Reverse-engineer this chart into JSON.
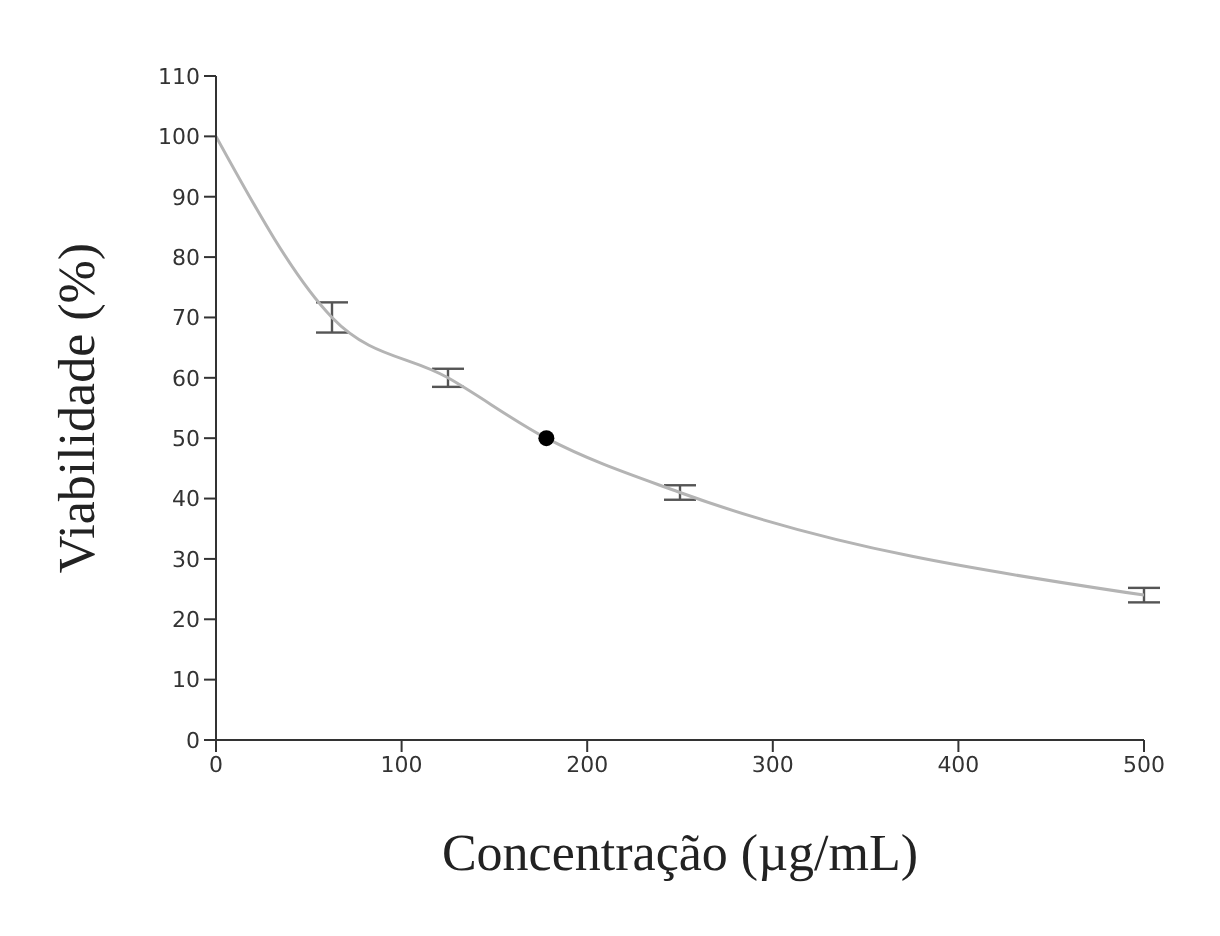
{
  "chart_data": {
    "type": "line",
    "xlabel": "Concentração (µg/mL)",
    "ylabel": "Viabilidade (%)",
    "xlim": [
      0,
      500
    ],
    "xticks": [
      0,
      100,
      200,
      300,
      400,
      500
    ],
    "ylim": [
      0,
      110
    ],
    "yticks": [
      0,
      10,
      20,
      30,
      40,
      50,
      60,
      70,
      80,
      90,
      100,
      110
    ],
    "grid": false,
    "legend": false,
    "marker": "none",
    "line_style": "solid",
    "series": [
      {
        "color": "#b4b4b4",
        "x": [
          0,
          62.5,
          125,
          178,
          250,
          500
        ],
        "values": [
          100,
          70,
          60,
          50,
          41,
          24
        ],
        "errors": [
          null,
          2.5,
          1.5,
          null,
          1.2,
          1.2
        ]
      },
      {
        "type": "scatter",
        "color": "#000000",
        "marker": "circle",
        "x": [
          178
        ],
        "values": [
          50
        ]
      }
    ]
  }
}
